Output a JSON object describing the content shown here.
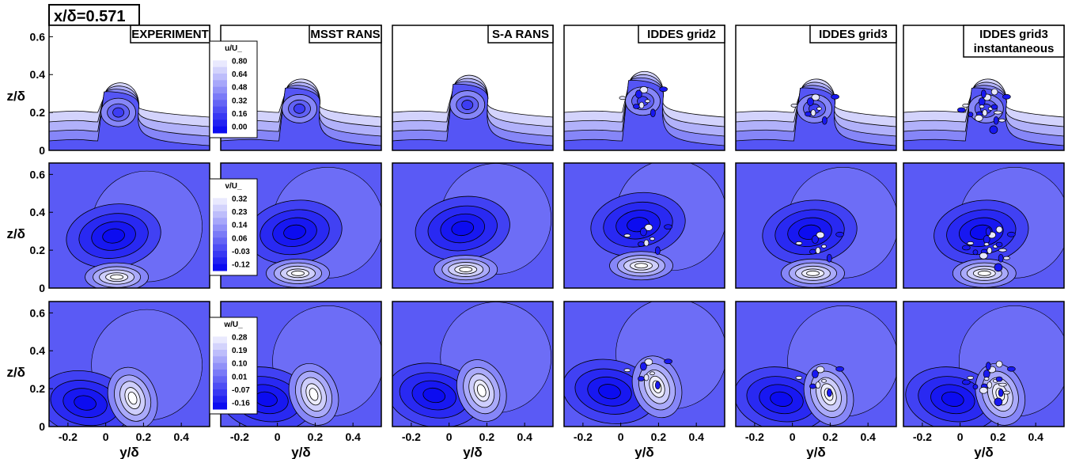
{
  "figure": {
    "station_label": "x/δ=0.571"
  },
  "colors": {
    "low": "#0c0cf0",
    "high": "#ffffff",
    "line": "#000000"
  },
  "chart_data": {
    "type": "heatmap",
    "axes": {
      "xlabel": "y/δ",
      "ylabel": "z/δ",
      "xticks": [
        "-0.2",
        "0",
        "0.2",
        "0.4"
      ],
      "xtick_values": [
        -0.2,
        0,
        0.2,
        0.4
      ],
      "yticks": [
        "0",
        "0.2",
        "0.4",
        "0.6"
      ],
      "ytick_values": [
        0,
        0.2,
        0.4,
        0.6
      ],
      "xlim": [
        -0.3,
        0.55
      ],
      "ylim": [
        0,
        0.66
      ]
    },
    "columns": [
      "EXPERIMENT",
      "MSST RANS",
      "S-A RANS",
      "IDDES grid2",
      "IDDES grid3",
      "IDDES grid3 instantaneous"
    ],
    "rows": [
      {
        "variable": "u/U_",
        "levels": [
          "0.80",
          "0.64",
          "0.48",
          "0.32",
          "0.16",
          "0.00"
        ],
        "level_values": [
          0.8,
          0.64,
          0.48,
          0.32,
          0.16,
          0.0
        ]
      },
      {
        "variable": "v/U_",
        "levels": [
          "0.32",
          "0.23",
          "0.14",
          "0.06",
          "-0.03",
          "-0.12"
        ],
        "level_values": [
          0.32,
          0.23,
          0.14,
          0.06,
          -0.03,
          -0.12
        ]
      },
      {
        "variable": "w/U_",
        "levels": [
          "0.28",
          "0.19",
          "0.10",
          "0.01",
          "-0.07",
          "-0.16"
        ],
        "level_values": [
          0.28,
          0.19,
          0.1,
          0.01,
          -0.07,
          -0.16
        ]
      }
    ]
  }
}
